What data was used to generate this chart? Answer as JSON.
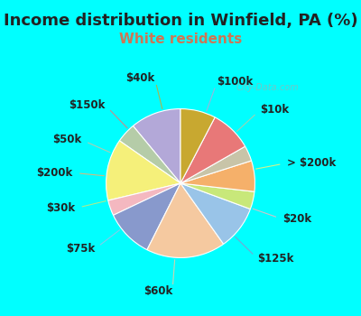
{
  "title": "Income distribution in Winfield, PA (%)",
  "subtitle": "White residents",
  "bg_cyan": "#00FFFF",
  "bg_chart": "#e0f5ec",
  "subtitle_color": "#cc7755",
  "watermark": "City-Data.com",
  "slices": [
    {
      "label": "$100k",
      "value": 11.5,
      "color": "#b3a8d8"
    },
    {
      "label": "$10k",
      "value": 4.5,
      "color": "#b5cca8"
    },
    {
      "label": "> $200k",
      "value": 14.0,
      "color": "#f5f07a"
    },
    {
      "label": "$20k",
      "value": 3.5,
      "color": "#f4b8c0"
    },
    {
      "label": "$125k",
      "value": 11.0,
      "color": "#8899cc"
    },
    {
      "label": "$60k",
      "value": 18.0,
      "color": "#f5c9a0"
    },
    {
      "label": "$75k",
      "value": 10.0,
      "color": "#99c4e8"
    },
    {
      "label": "$30k",
      "value": 4.0,
      "color": "#c8e87a"
    },
    {
      "label": "$200k",
      "value": 7.0,
      "color": "#f5b06a"
    },
    {
      "label": "$50k",
      "value": 3.5,
      "color": "#c8c4a8"
    },
    {
      "label": "$150k",
      "value": 9.5,
      "color": "#e87878"
    },
    {
      "label": "$40k",
      "value": 8.0,
      "color": "#c8a830"
    }
  ],
  "start_angle": 90,
  "title_fontsize": 13,
  "subtitle_fontsize": 11,
  "label_fontsize": 8.5
}
